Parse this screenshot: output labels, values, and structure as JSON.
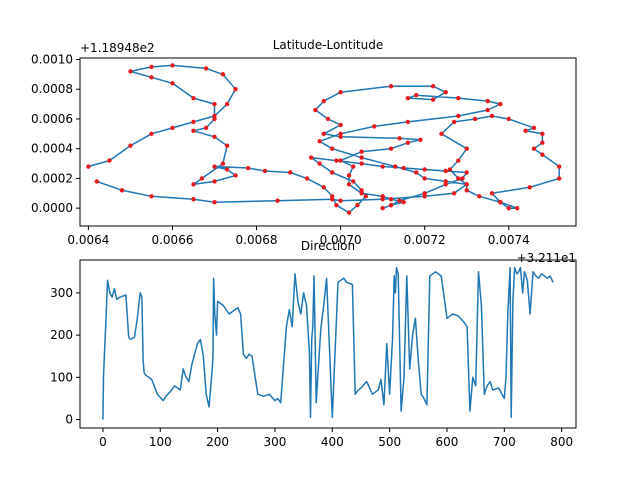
{
  "colors": {
    "line": "#1f77b4",
    "marker": "#e41a1c",
    "background": "#ffffff",
    "axes": "#000000"
  },
  "chart_data": [
    {
      "type": "line",
      "title": "Latitude-Lontitude",
      "xlabel": "",
      "ylabel": "",
      "x_offset_label": "+3.211e1",
      "y_offset_label": "+1.18948e2",
      "xlim": [
        0.00638,
        0.00756
      ],
      "ylim": [
        -0.00012,
        0.00101
      ],
      "x_ticks": [
        0.0064,
        0.0066,
        0.0068,
        0.007,
        0.0072,
        0.0074
      ],
      "x_tick_labels": [
        "0.0064",
        "0.0066",
        "0.0068",
        "0.0070",
        "0.0072",
        "0.0074"
      ],
      "y_ticks": [
        0.0,
        0.0002,
        0.0004,
        0.0006,
        0.0008,
        0.001
      ],
      "y_tick_labels": [
        "0.0000",
        "0.0002",
        "0.0004",
        "0.0006",
        "0.0008",
        "0.0010"
      ],
      "grid": false,
      "markers": true,
      "series": [
        {
          "x": [
            0.0064,
            0.00645,
            0.0065,
            0.00655,
            0.0066,
            0.00665,
            0.0067,
            0.00673,
            0.00675,
            0.00672,
            0.00668,
            0.0066,
            0.00655,
            0.0065,
            0.00655,
            0.0066,
            0.00665,
            0.0067,
            0.0067,
            0.00668,
            0.00665,
            0.0067,
            0.00673,
            0.00672,
            0.00667,
            0.00665,
            0.0067,
            0.00675,
            0.00673,
            0.0067,
            0.00678,
            0.00682,
            0.00688,
            0.00692,
            0.00696,
            0.00698,
            0.00699,
            0.00702,
            0.00704,
            0.00706,
            0.00705,
            0.00703,
            0.00698,
            0.00695,
            0.00693,
            0.00699,
            0.00705,
            0.0071,
            0.00715,
            0.0072,
            0.00725,
            0.0073,
            0.00729,
            0.00725,
            0.0072,
            0.00714,
            0.00712,
            0.0071,
            0.00712,
            0.00715,
            0.00712,
            0.0071,
            0.00705,
            0.00702,
            0.00702,
            0.00703,
            0.007,
            0.00705,
            0.00712,
            0.00716,
            0.00719,
            0.00714,
            0.007,
            0.00696,
            0.007,
            0.00697,
            0.00694,
            0.00696,
            0.007,
            0.00712,
            0.00722,
            0.00725,
            0.00722,
            0.00716,
            0.00718,
            0.00728,
            0.00735,
            0.00738,
            0.00735,
            0.00728,
            0.00716,
            0.00708,
            0.007,
            0.00695,
            0.00698,
            0.00705,
            0.00713,
            0.00718,
            0.0072,
            0.00725,
            0.0073,
            0.0073,
            0.00733,
            0.00738,
            0.00742,
            0.0074,
            0.00738,
            0.00736,
            0.00745,
            0.00752,
            0.00752,
            0.00748,
            0.00746,
            0.00748,
            0.00748,
            0.00744,
            0.00746,
            0.0074,
            0.00736,
            0.00732,
            0.00727,
            0.00724,
            0.0073,
            0.00728,
            0.00726,
            0.00728,
            0.0073,
            0.00727,
            0.0072,
            0.0071,
            0.007,
            0.00698,
            0.00685,
            0.0067,
            0.00665,
            0.00655,
            0.00648,
            0.00642
          ],
          "y": [
            0.00028,
            0.00032,
            0.00042,
            0.0005,
            0.00054,
            0.00058,
            0.00062,
            0.0007,
            0.0008,
            0.0009,
            0.00094,
            0.00096,
            0.00095,
            0.00092,
            0.00088,
            0.00084,
            0.00074,
            0.0007,
            0.0006,
            0.00054,
            0.00052,
            0.00048,
            0.00042,
            0.0003,
            0.0002,
            0.00016,
            0.00018,
            0.00022,
            0.00026,
            0.00028,
            0.00027,
            0.00025,
            0.00024,
            0.0002,
            0.00014,
            8e-05,
            2e-05,
            -3e-05,
            2e-05,
            8e-05,
            0.00012,
            0.00018,
            0.00024,
            0.0003,
            0.00034,
            0.00032,
            0.0003,
            0.00028,
            0.00027,
            0.00026,
            0.00025,
            0.00024,
            0.0002,
            0.00016,
            0.0001,
            5e-05,
            2e-05,
            0.0,
            2e-05,
            4e-05,
            6e-05,
            8e-05,
            0.0001,
            0.00016,
            0.00022,
            0.00028,
            0.00032,
            0.00038,
            0.0004,
            0.00044,
            0.00046,
            0.00047,
            0.00048,
            0.0005,
            0.00056,
            0.0006,
            0.00066,
            0.00072,
            0.00078,
            0.00082,
            0.00082,
            0.00078,
            0.00073,
            0.00074,
            0.00076,
            0.00074,
            0.00072,
            0.0007,
            0.00066,
            0.00062,
            0.00058,
            0.00055,
            0.0005,
            0.00045,
            0.0004,
            0.00034,
            0.00028,
            0.00024,
            0.0002,
            0.00018,
            0.00016,
            0.00012,
            8e-05,
            4e-05,
            0.0,
            0.0,
            4e-05,
            0.0001,
            0.00014,
            0.0002,
            0.00028,
            0.00036,
            0.0004,
            0.00044,
            0.0005,
            0.00052,
            0.00054,
            0.0006,
            0.00062,
            0.0006,
            0.00058,
            0.0005,
            0.0004,
            0.00032,
            0.00026,
            0.0002,
            0.00016,
            0.0001,
            8e-05,
            6e-05,
            5e-05,
            6e-05,
            5e-05,
            4e-05,
            6e-05,
            8e-05,
            0.00012,
            0.00018
          ]
        }
      ]
    },
    {
      "type": "line",
      "title": "Direction",
      "xlabel": "",
      "ylabel": "",
      "xlim": [
        -40,
        825
      ],
      "ylim": [
        -20,
        378
      ],
      "x_ticks": [
        0,
        100,
        200,
        300,
        400,
        500,
        600,
        700,
        800
      ],
      "x_tick_labels": [
        "0",
        "100",
        "200",
        "300",
        "400",
        "500",
        "600",
        "700",
        "800"
      ],
      "y_ticks": [
        0,
        100,
        200,
        300
      ],
      "y_tick_labels": [
        "0",
        "100",
        "200",
        "300"
      ],
      "grid": false,
      "markers": false,
      "series": [
        {
          "x": [
            0,
            1,
            3,
            6,
            8,
            12,
            16,
            20,
            24,
            30,
            40,
            45,
            48,
            55,
            60,
            65,
            68,
            70,
            72,
            75,
            85,
            95,
            105,
            110,
            120,
            125,
            135,
            140,
            145,
            150,
            155,
            165,
            170,
            175,
            180,
            185,
            190,
            192,
            193,
            195,
            198,
            200,
            210,
            220,
            225,
            235,
            240,
            245,
            250,
            255,
            260,
            270,
            280,
            290,
            300,
            305,
            310,
            320,
            325,
            330,
            335,
            340,
            345,
            350,
            355,
            360,
            362,
            364,
            366,
            368,
            370,
            372,
            380,
            385,
            390,
            400,
            410,
            415,
            420,
            425,
            435,
            440,
            445,
            450,
            460,
            470,
            480,
            485,
            490,
            495,
            500,
            505,
            508,
            510,
            512,
            515,
            520,
            525,
            530,
            535,
            540,
            545,
            550,
            555,
            560,
            565,
            570,
            580,
            590,
            600,
            610,
            620,
            630,
            635,
            640,
            645,
            650,
            655,
            660,
            665,
            670,
            675,
            680,
            690,
            700,
            703,
            706,
            710,
            712,
            715,
            718,
            722,
            725,
            728,
            732,
            735,
            740,
            745,
            750,
            755,
            760,
            765,
            770,
            775,
            780,
            785
          ],
          "y": [
            0,
            100,
            170,
            260,
            330,
            300,
            290,
            310,
            285,
            290,
            295,
            195,
            190,
            195,
            240,
            300,
            290,
            140,
            110,
            105,
            95,
            60,
            45,
            55,
            70,
            80,
            70,
            120,
            100,
            90,
            130,
            180,
            190,
            150,
            60,
            30,
            110,
            150,
            335,
            250,
            200,
            280,
            270,
            250,
            255,
            265,
            250,
            155,
            145,
            155,
            150,
            60,
            55,
            60,
            45,
            50,
            40,
            220,
            260,
            220,
            345,
            280,
            250,
            300,
            270,
            160,
            5,
            190,
            220,
            340,
            200,
            40,
            215,
            270,
            335,
            5,
            325,
            330,
            335,
            325,
            320,
            60,
            70,
            75,
            90,
            60,
            70,
            95,
            35,
            180,
            60,
            190,
            340,
            300,
            360,
            345,
            20,
            100,
            340,
            120,
            200,
            240,
            140,
            60,
            50,
            35,
            340,
            350,
            340,
            240,
            250,
            245,
            230,
            220,
            20,
            100,
            80,
            350,
            270,
            60,
            80,
            90,
            70,
            75,
            50,
            100,
            250,
            360,
            5,
            280,
            360,
            345,
            350,
            360,
            300,
            350,
            330,
            250,
            350,
            340,
            335,
            345,
            340,
            335,
            340,
            325
          ]
        }
      ]
    }
  ]
}
